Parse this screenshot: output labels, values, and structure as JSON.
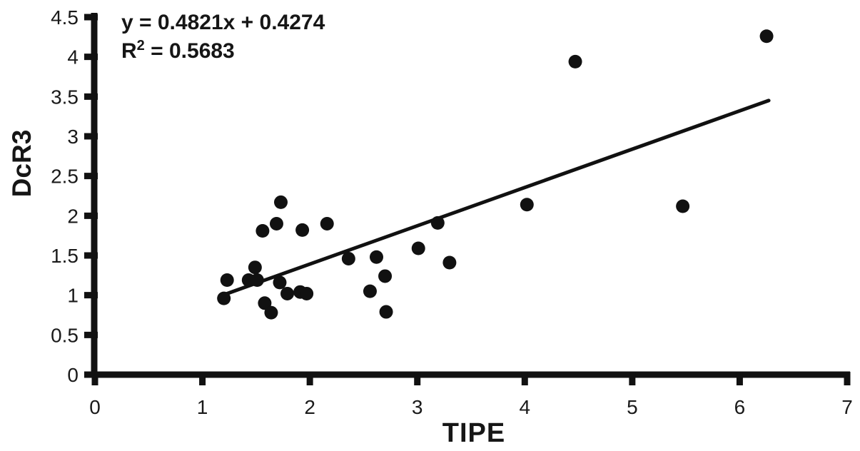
{
  "chart_data": {
    "type": "scatter",
    "title": "",
    "xlabel": "TIPE",
    "ylabel": "DcR3",
    "xlim": [
      0,
      7
    ],
    "ylim": [
      0,
      4.5
    ],
    "grid": false,
    "legend": false,
    "marker_color": "#111111",
    "axis_color": "#111111",
    "trendline_color": "#111111",
    "x_ticks": [
      "0",
      "1",
      "2",
      "3",
      "4",
      "5",
      "6",
      "7"
    ],
    "y_ticks": [
      "0",
      "0.5",
      "1",
      "1.5",
      "2",
      "2.5",
      "3",
      "3.5",
      "4",
      "4.5"
    ],
    "annotation": {
      "equation": "y = 0.4821x + 0.4274",
      "r2_base": "R",
      "r2_sup": "2",
      "r2_rest": " = 0.5683"
    },
    "trendline": {
      "slope": 0.4821,
      "intercept": 0.4274,
      "x_start": 1.21,
      "x_end": 6.27
    },
    "points": [
      [
        1.2,
        0.96
      ],
      [
        1.23,
        1.19
      ],
      [
        1.43,
        1.19
      ],
      [
        1.51,
        1.19
      ],
      [
        1.49,
        1.35
      ],
      [
        1.56,
        1.81
      ],
      [
        1.58,
        0.9
      ],
      [
        1.64,
        0.78
      ],
      [
        1.69,
        1.9
      ],
      [
        1.72,
        1.16
      ],
      [
        1.73,
        2.17
      ],
      [
        1.79,
        1.02
      ],
      [
        1.91,
        1.04
      ],
      [
        1.97,
        1.02
      ],
      [
        1.93,
        1.82
      ],
      [
        2.16,
        1.9
      ],
      [
        2.36,
        1.46
      ],
      [
        2.56,
        1.05
      ],
      [
        2.62,
        1.48
      ],
      [
        2.7,
        1.24
      ],
      [
        2.71,
        0.79
      ],
      [
        3.01,
        1.59
      ],
      [
        3.19,
        1.91
      ],
      [
        3.3,
        1.41
      ],
      [
        4.02,
        2.14
      ],
      [
        4.47,
        3.94
      ],
      [
        5.47,
        2.12
      ],
      [
        6.25,
        4.26
      ]
    ]
  }
}
